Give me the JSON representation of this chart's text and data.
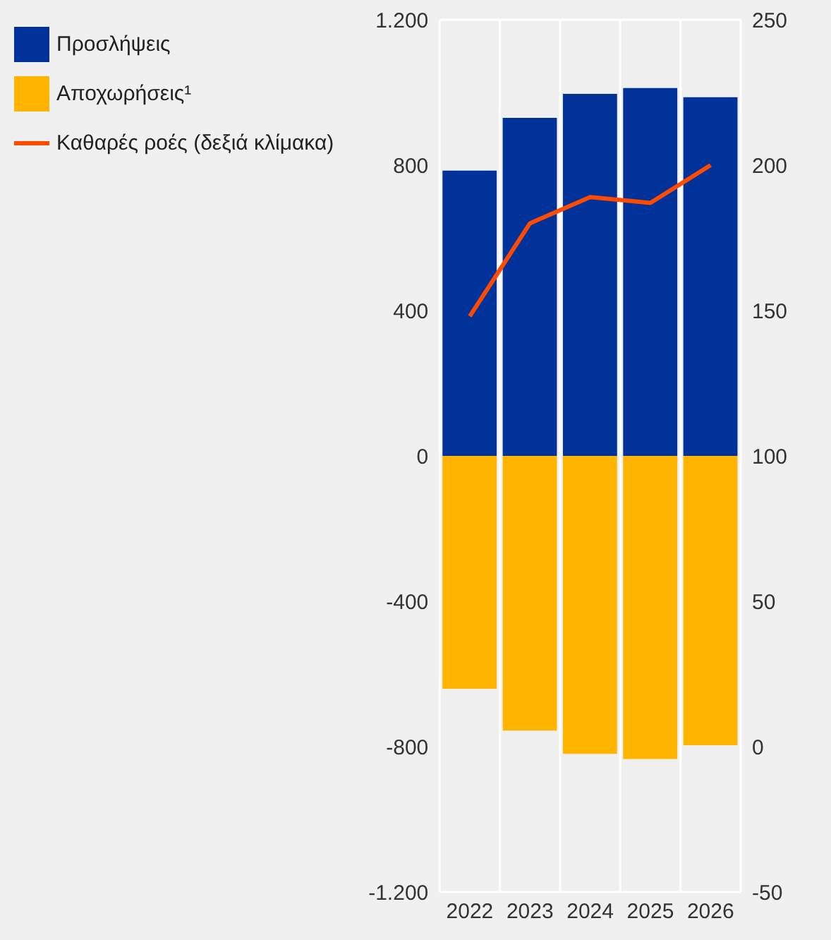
{
  "chart_data": {
    "type": "bar",
    "stacked": true,
    "categories": [
      "2022",
      "2023",
      "2024",
      "2025",
      "2026"
    ],
    "series": [
      {
        "name": "Προσλήψεις",
        "color": "#003299",
        "values": [
          785,
          930,
          996,
          1012,
          987
        ]
      },
      {
        "name": "Αποχωρήσεις¹",
        "color": "#ffb400",
        "values": [
          -641,
          -756,
          -820,
          -834,
          -796
        ]
      },
      {
        "name": "Καθαρές ροές (δεξιά κλίμακα)",
        "type": "line",
        "axis": "y2",
        "color": "#ff4b00",
        "values": [
          148,
          180,
          189,
          187,
          200
        ]
      }
    ],
    "ylim": [
      -1200,
      1200
    ],
    "yticks": [
      {
        "value": -1200,
        "label": "-1.200"
      },
      -800,
      -400,
      0,
      400,
      800,
      {
        "value": 1200,
        "label": "1.200"
      }
    ],
    "y2lim": [
      -50,
      250
    ],
    "y2ticks": [
      -50,
      0,
      50,
      100,
      150,
      200,
      250
    ],
    "grid": true,
    "legend": "top left",
    "marker": "none",
    "line_style": "solid"
  }
}
